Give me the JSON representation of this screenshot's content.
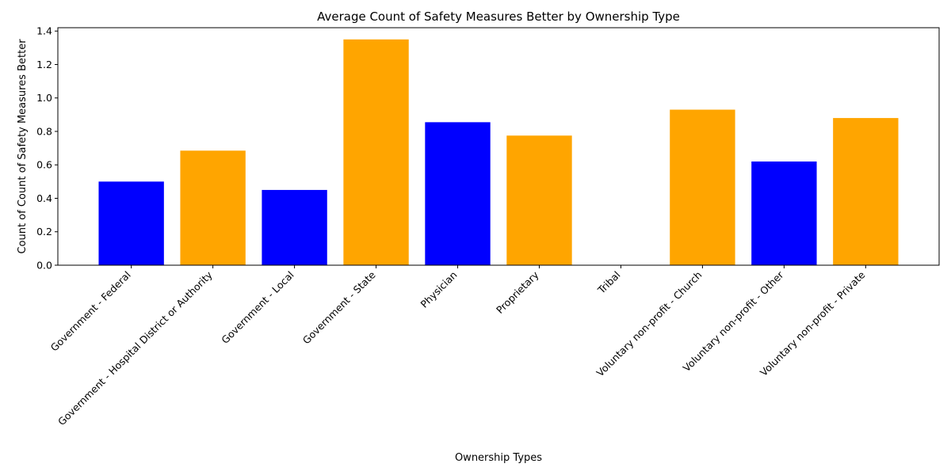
{
  "chart_data": {
    "type": "bar",
    "title": "Average Count of Safety Measures Better by Ownership Type",
    "xlabel": "Ownership Types",
    "ylabel": "Count of Count of Safety Measures Better",
    "categories": [
      "Government - Federal",
      "Government - Hospital District or Authority",
      "Government - Local",
      "Government - State",
      "Physician",
      "Proprietary",
      "Tribal",
      "Voluntary non-profit - Church",
      "Voluntary non-profit - Other",
      "Voluntary non-profit - Private"
    ],
    "values": [
      0.5,
      0.685,
      0.45,
      1.35,
      0.855,
      0.775,
      0.0,
      0.93,
      0.62,
      0.88
    ],
    "bar_colors": [
      "#0000ff",
      "#ffa500",
      "#0000ff",
      "#ffa500",
      "#0000ff",
      "#ffa500",
      "#ffa500",
      "#ffa500",
      "#0000ff",
      "#ffa500"
    ],
    "ylim": [
      0,
      1.42
    ],
    "yticks": [
      0.0,
      0.2,
      0.4,
      0.6,
      0.8,
      1.0,
      1.2,
      1.4
    ],
    "ytick_labels": [
      "0.0",
      "0.2",
      "0.4",
      "0.6",
      "0.8",
      "1.0",
      "1.2",
      "1.4"
    ],
    "grid": false,
    "legend": "none"
  }
}
